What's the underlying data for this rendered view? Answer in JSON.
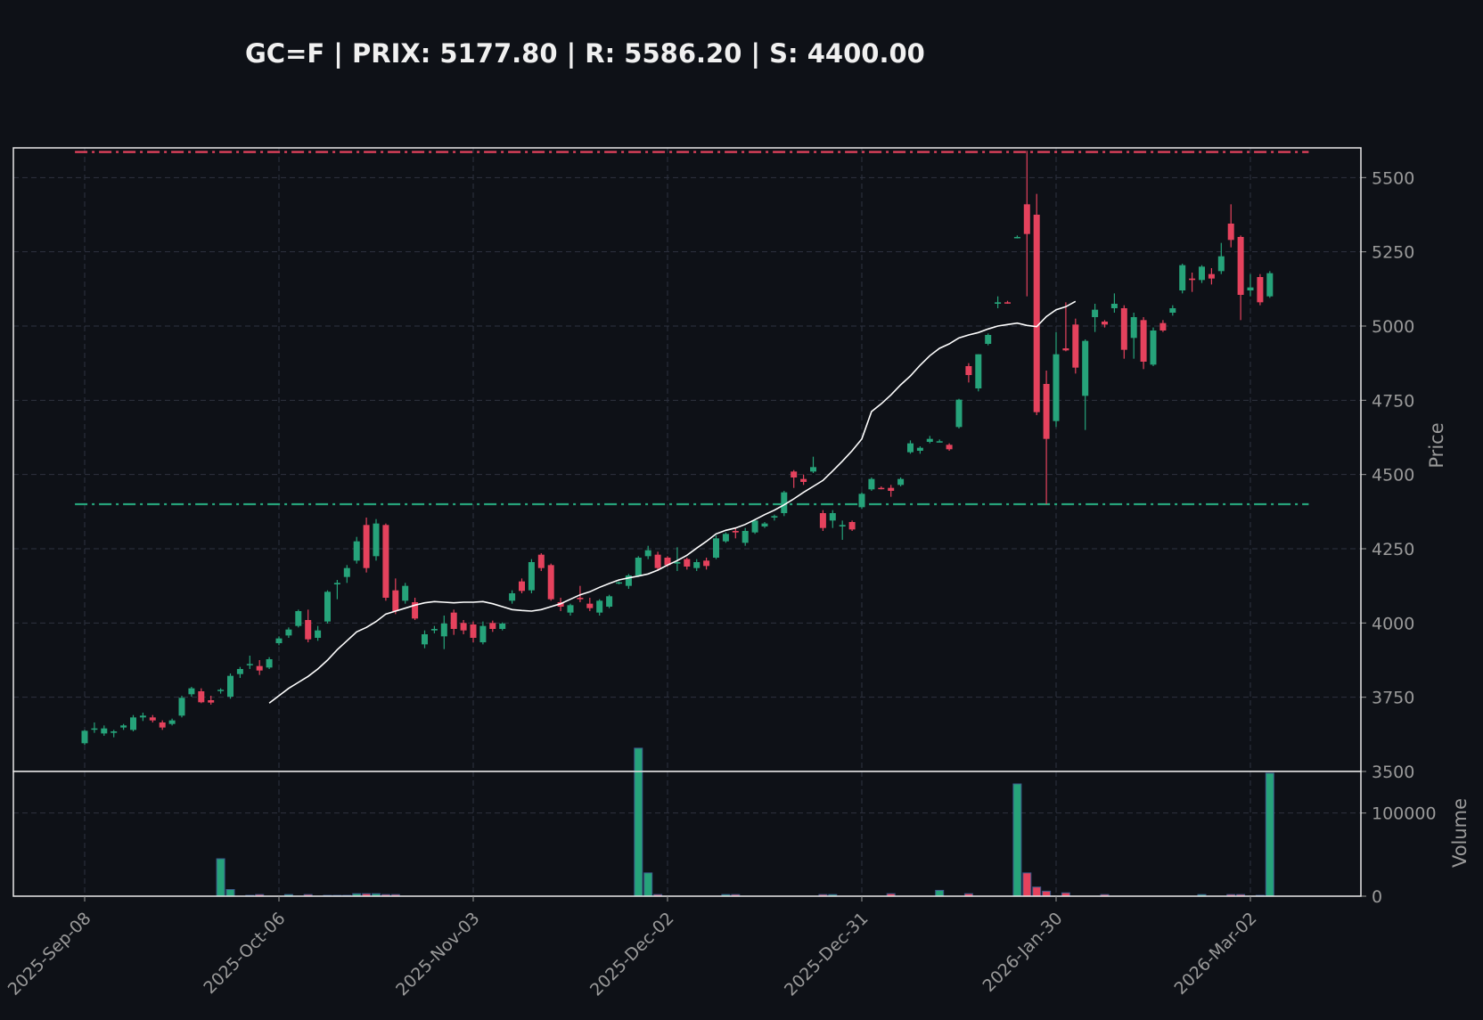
{
  "chart_data": {
    "title": "GC=F | PRIX: 5177.80 | R: 5586.20 | S: 4400.00",
    "type": "candlestick",
    "price_axis": {
      "label": "Price",
      "ylim": [
        3500,
        5600
      ],
      "ticks": [
        3500,
        3750,
        4000,
        4250,
        4500,
        4750,
        5000,
        5250,
        5500
      ]
    },
    "volume_axis": {
      "label": "Volume",
      "ylim": [
        0,
        150000
      ],
      "ticks": [
        {
          "value": 0,
          "label": "0"
        },
        {
          "value": 100000,
          "label": "100000"
        }
      ]
    },
    "x_ticks": [
      {
        "index": 0,
        "label": "2025-Sep-08"
      },
      {
        "index": 20,
        "label": "2025-Oct-06"
      },
      {
        "index": 40,
        "label": "2025-Nov-03"
      },
      {
        "index": 60,
        "label": "2025-Dec-02"
      },
      {
        "index": 80,
        "label": "2025-Dec-31"
      },
      {
        "index": 100,
        "label": "2026-Jan-30"
      },
      {
        "index": 120,
        "label": "2026-Mar-02"
      }
    ],
    "resistance": 5586.2,
    "support": 4400.0,
    "colors": {
      "up": "#26a37a",
      "down": "#e5425d",
      "resistance": "#e5425d",
      "support": "#26a37a",
      "ma": "#ffffff",
      "background": "#0e1117",
      "text": "#9a9a9a",
      "title": "#f0f0f0"
    },
    "candles": [
      [
        3595,
        3640,
        3590,
        3637,
        0
      ],
      [
        3642,
        3665,
        3630,
        3645,
        0
      ],
      [
        3628,
        3655,
        3620,
        3645,
        0
      ],
      [
        3630,
        3640,
        3615,
        3635,
        0
      ],
      [
        3648,
        3660,
        3640,
        3655,
        0
      ],
      [
        3640,
        3690,
        3635,
        3682,
        0
      ],
      [
        3682,
        3698,
        3670,
        3688,
        0
      ],
      [
        3682,
        3690,
        3665,
        3672,
        0
      ],
      [
        3665,
        3672,
        3640,
        3648,
        0
      ],
      [
        3660,
        3678,
        3655,
        3672,
        0
      ],
      [
        3688,
        3755,
        3682,
        3748,
        0
      ],
      [
        3760,
        3785,
        3752,
        3780,
        0
      ],
      [
        3770,
        3780,
        3730,
        3733,
        0
      ],
      [
        3740,
        3755,
        3725,
        3732,
        0
      ],
      [
        3772,
        3780,
        3762,
        3775,
        45000
      ],
      [
        3752,
        3830,
        3745,
        3822,
        8000
      ],
      [
        3828,
        3852,
        3815,
        3845,
        0
      ],
      [
        3858,
        3890,
        3845,
        3862,
        1000
      ],
      [
        3855,
        3875,
        3825,
        3840,
        2000
      ],
      [
        3850,
        3885,
        3845,
        3878,
        0
      ],
      [
        3932,
        3955,
        3925,
        3948,
        0
      ],
      [
        3958,
        3985,
        3950,
        3978,
        2000
      ],
      [
        3990,
        4045,
        3985,
        4040,
        0
      ],
      [
        4010,
        4045,
        3935,
        3945,
        2000
      ],
      [
        3950,
        3990,
        3940,
        3975,
        0
      ],
      [
        4005,
        4110,
        3998,
        4105,
        1000
      ],
      [
        4130,
        4145,
        4080,
        4135,
        1000
      ],
      [
        4155,
        4195,
        4135,
        4185,
        1000
      ],
      [
        4210,
        4290,
        4200,
        4275,
        3000
      ],
      [
        4330,
        4355,
        4170,
        4185,
        3000
      ],
      [
        4225,
        4350,
        4210,
        4335,
        3000
      ],
      [
        4330,
        4335,
        4075,
        4085,
        2000
      ],
      [
        4110,
        4150,
        4030,
        4040,
        2000
      ],
      [
        4075,
        4135,
        4065,
        4125,
        0
      ],
      [
        4070,
        4085,
        4010,
        4015,
        0
      ],
      [
        3928,
        3975,
        3915,
        3962,
        0
      ],
      [
        3975,
        3990,
        3965,
        3980,
        0
      ],
      [
        3955,
        4025,
        3912,
        3998,
        0
      ],
      [
        4035,
        4045,
        3960,
        3980,
        0
      ],
      [
        4000,
        4010,
        3962,
        3975,
        0
      ],
      [
        3995,
        4005,
        3935,
        3950,
        0
      ],
      [
        3935,
        4005,
        3928,
        3990,
        0
      ],
      [
        4000,
        4008,
        3970,
        3980,
        0
      ],
      [
        3980,
        4002,
        3975,
        3998,
        0
      ],
      [
        4075,
        4110,
        4065,
        4100,
        0
      ],
      [
        4140,
        4150,
        4100,
        4108,
        0
      ],
      [
        4110,
        4215,
        4100,
        4205,
        0
      ],
      [
        4230,
        4235,
        4175,
        4185,
        0
      ],
      [
        4195,
        4200,
        4075,
        4080,
        0
      ],
      [
        4070,
        4085,
        4040,
        4055,
        0
      ],
      [
        4035,
        4065,
        4025,
        4060,
        0
      ],
      [
        4085,
        4125,
        4070,
        4080,
        0
      ],
      [
        4065,
        4085,
        4040,
        4050,
        0
      ],
      [
        4035,
        4080,
        4025,
        4075,
        0
      ],
      [
        4055,
        4095,
        4050,
        4090,
        0
      ],
      [
        4135,
        4140,
        4130,
        4137,
        0
      ],
      [
        4125,
        4165,
        4115,
        4160,
        0
      ],
      [
        4160,
        4225,
        4155,
        4220,
        178000
      ],
      [
        4225,
        4260,
        4215,
        4245,
        28000
      ],
      [
        4230,
        4240,
        4175,
        4185,
        2000
      ],
      [
        4220,
        4225,
        4190,
        4195,
        0
      ],
      [
        4200,
        4255,
        4175,
        4205,
        0
      ],
      [
        4215,
        4220,
        4180,
        4190,
        0
      ],
      [
        4185,
        4215,
        4175,
        4205,
        0
      ],
      [
        4210,
        4220,
        4180,
        4192,
        0
      ],
      [
        4220,
        4295,
        4215,
        4285,
        0
      ],
      [
        4275,
        4305,
        4270,
        4300,
        2000
      ],
      [
        4310,
        4320,
        4285,
        4305,
        2000
      ],
      [
        4270,
        4320,
        4260,
        4310,
        0
      ],
      [
        4305,
        4350,
        4300,
        4345,
        0
      ],
      [
        4325,
        4340,
        4320,
        4335,
        0
      ],
      [
        4355,
        4365,
        4345,
        4360,
        0
      ],
      [
        4370,
        4445,
        4360,
        4440,
        0
      ],
      [
        4510,
        4515,
        4455,
        4490,
        0
      ],
      [
        4485,
        4500,
        4465,
        4475,
        0
      ],
      [
        4510,
        4560,
        4505,
        4525,
        0
      ],
      [
        4370,
        4380,
        4310,
        4320,
        2000
      ],
      [
        4345,
        4380,
        4320,
        4370,
        2000
      ],
      [
        4325,
        4345,
        4280,
        4330,
        0
      ],
      [
        4340,
        4345,
        4310,
        4315,
        0
      ],
      [
        4390,
        4440,
        4385,
        4435,
        0
      ],
      [
        4450,
        4490,
        4445,
        4485,
        0
      ],
      [
        4455,
        4460,
        4450,
        4452,
        0
      ],
      [
        4455,
        4465,
        4425,
        4445,
        3000
      ],
      [
        4465,
        4490,
        4460,
        4485,
        0
      ],
      [
        4575,
        4615,
        4570,
        4605,
        0
      ],
      [
        4580,
        4595,
        4570,
        4590,
        0
      ],
      [
        4610,
        4630,
        4605,
        4620,
        0
      ],
      [
        4612,
        4618,
        4608,
        4612,
        7000
      ],
      [
        4600,
        4605,
        4580,
        4585,
        0
      ],
      [
        4660,
        4755,
        4655,
        4752,
        0
      ],
      [
        4865,
        4875,
        4810,
        4835,
        3000
      ],
      [
        4790,
        4905,
        4780,
        4905,
        0
      ],
      [
        4940,
        4975,
        4935,
        4970,
        0
      ],
      [
        5075,
        5100,
        5060,
        5080,
        0
      ],
      [
        5080,
        5085,
        5075,
        5078,
        0
      ],
      [
        5300,
        5305,
        5295,
        5300,
        135000
      ],
      [
        5410,
        5590,
        5100,
        5310,
        28000
      ],
      [
        5375,
        5445,
        4700,
        4710,
        11000
      ],
      [
        4805,
        4850,
        4400,
        4620,
        6000
      ],
      [
        4680,
        4980,
        4660,
        4905,
        0
      ],
      [
        4925,
        5080,
        4915,
        4918,
        4000
      ],
      [
        5005,
        5025,
        4840,
        4860,
        0
      ],
      [
        4765,
        4955,
        4650,
        4950,
        0
      ],
      [
        5030,
        5075,
        4980,
        5055,
        0
      ],
      [
        5015,
        5020,
        4995,
        5005,
        2000
      ],
      [
        5060,
        5110,
        5045,
        5075,
        0
      ],
      [
        5060,
        5070,
        4890,
        4920,
        0
      ],
      [
        4960,
        5045,
        4890,
        5030,
        0
      ],
      [
        5020,
        5030,
        4855,
        4880,
        0
      ],
      [
        4870,
        4995,
        4865,
        4985,
        0
      ],
      [
        5010,
        5020,
        4980,
        4985,
        0
      ],
      [
        5045,
        5070,
        5035,
        5060,
        0
      ],
      [
        5120,
        5210,
        5110,
        5205,
        0
      ],
      [
        5160,
        5180,
        5115,
        5155,
        0
      ],
      [
        5155,
        5205,
        5145,
        5200,
        2000
      ],
      [
        5175,
        5195,
        5140,
        5160,
        0
      ],
      [
        5185,
        5280,
        5175,
        5235,
        0
      ],
      [
        5345,
        5410,
        5265,
        5290,
        2000
      ],
      [
        5300,
        5305,
        5020,
        5105,
        2000
      ],
      [
        5120,
        5175,
        5100,
        5130,
        0
      ],
      [
        5165,
        5175,
        5070,
        5080,
        1000
      ],
      [
        5100,
        5185,
        5095,
        5178,
        148000
      ]
    ],
    "moving_average": {
      "start_index": 19,
      "values": [
        3730,
        3755,
        3780,
        3800,
        3820,
        3845,
        3875,
        3910,
        3940,
        3970,
        3985,
        4005,
        4030,
        4040,
        4050,
        4060,
        4068,
        4072,
        4070,
        4068,
        4070,
        4070,
        4072,
        4065,
        4055,
        4045,
        4042,
        4040,
        4045,
        4055,
        4065,
        4080,
        4095,
        4105,
        4120,
        4133,
        4145,
        4152,
        4158,
        4165,
        4178,
        4195,
        4210,
        4228,
        4252,
        4275,
        4300,
        4312,
        4320,
        4332,
        4348,
        4365,
        4380,
        4398,
        4418,
        4440,
        4460,
        4480,
        4512,
        4545,
        4580,
        4620,
        4712,
        4738,
        4768,
        4802,
        4832,
        4868,
        4900,
        4925,
        4940,
        4960,
        4970,
        4978,
        4990,
        5000,
        5005,
        5010,
        5002,
        4998,
        5032,
        5055,
        5065,
        5083
      ]
    }
  }
}
